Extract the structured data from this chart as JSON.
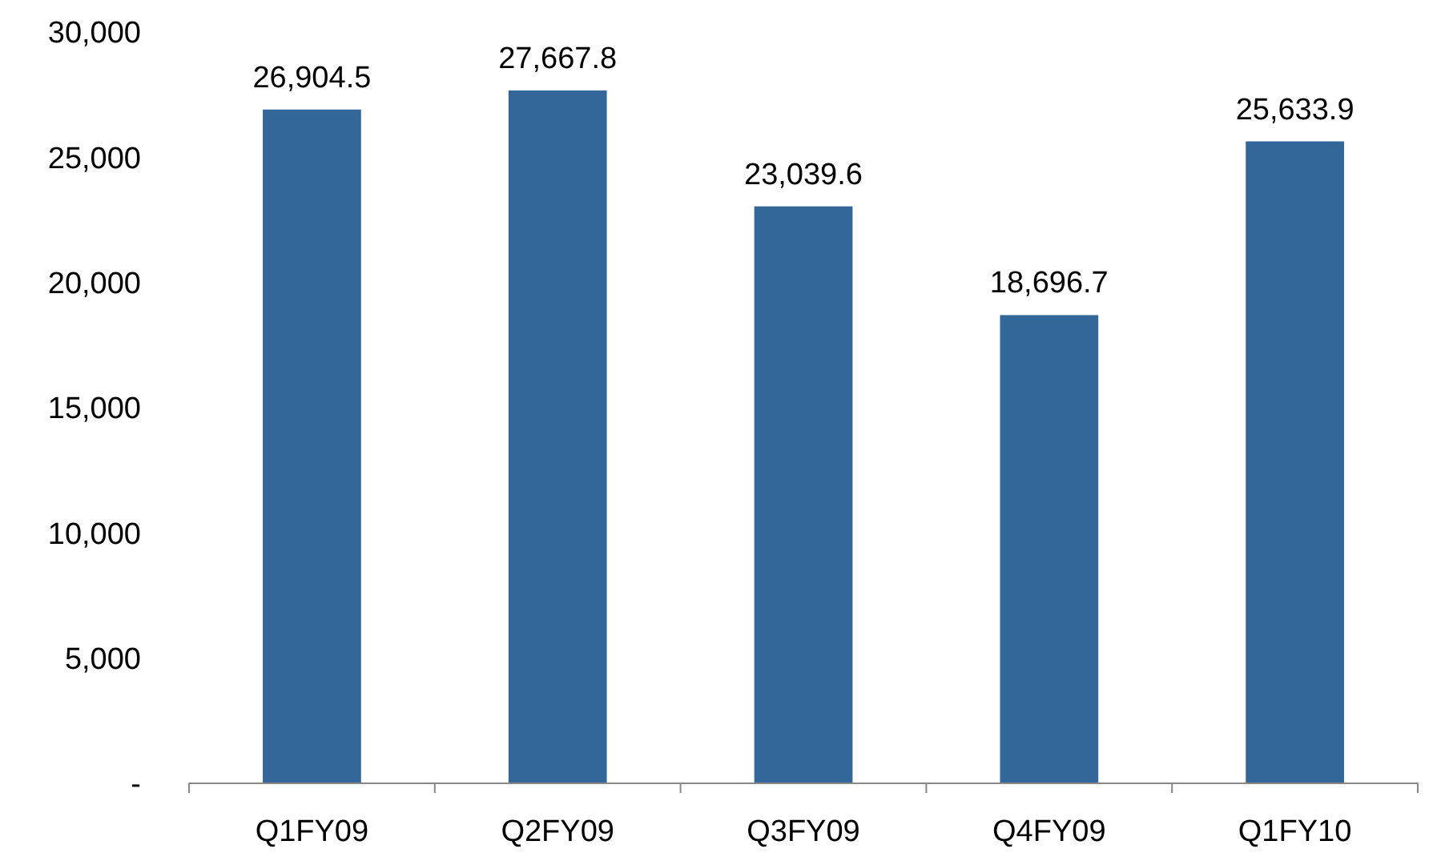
{
  "chart_data": {
    "type": "bar",
    "categories": [
      "Q1FY09",
      "Q2FY09",
      "Q3FY09",
      "Q4FY09",
      "Q1FY10"
    ],
    "values": [
      26904.5,
      27667.8,
      23039.6,
      18696.7,
      25633.9
    ],
    "color": "#336699",
    "ylim": [
      0,
      30000
    ],
    "yticks": [
      {
        "value": 0,
        "label": "-"
      },
      {
        "value": 5000,
        "label": "5,000"
      },
      {
        "value": 10000,
        "label": "10,000"
      },
      {
        "value": 15000,
        "label": "15,000"
      },
      {
        "value": 20000,
        "label": "20,000"
      },
      {
        "value": 25000,
        "label": "25,000"
      },
      {
        "value": 30000,
        "label": "30,000"
      }
    ],
    "value_labels": [
      "26,904.5",
      "27,667.8",
      "23,039.6",
      "18,696.7",
      "25,633.9"
    ]
  }
}
